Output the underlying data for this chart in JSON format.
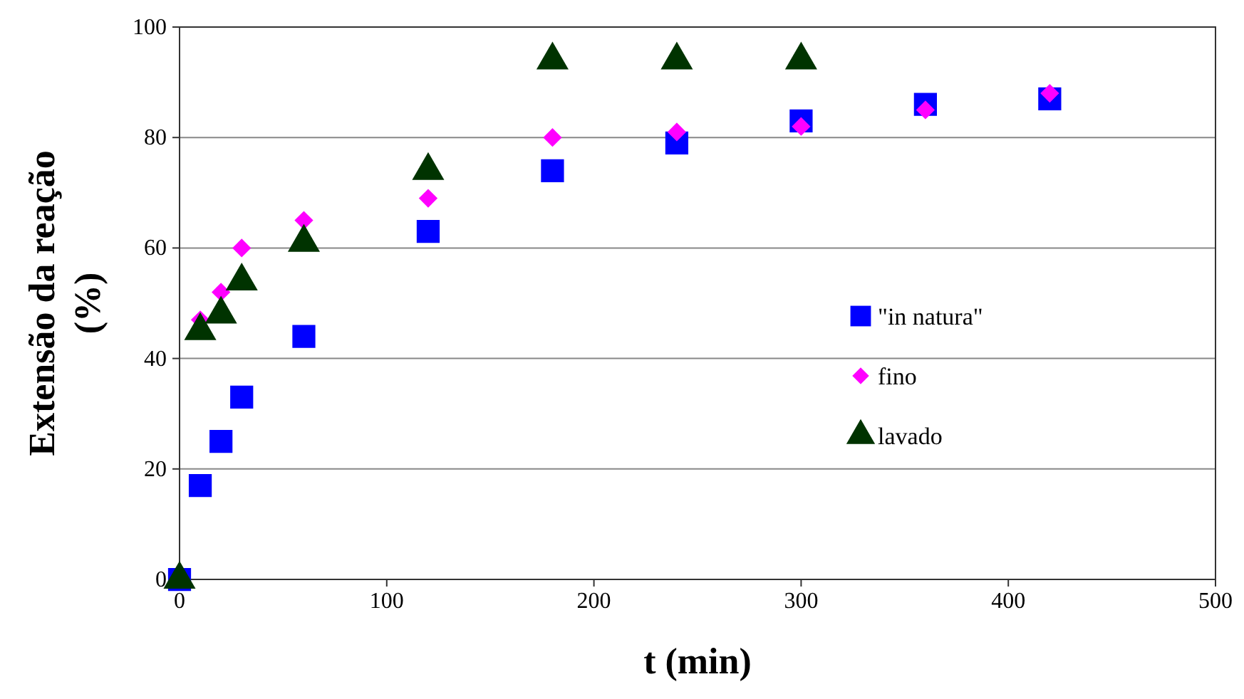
{
  "chart_data": {
    "type": "scatter",
    "xlabel": "t (min)",
    "ylabel": "Extensão da reação\n(%)",
    "xlim": [
      0,
      500
    ],
    "xticks": [
      0,
      100,
      200,
      300,
      400,
      500
    ],
    "ylim": [
      0,
      100
    ],
    "yticks": [
      0,
      20,
      40,
      60,
      80,
      100
    ],
    "grid": "y",
    "legend": "right",
    "series": [
      {
        "name": "\"in natura\"",
        "color": "#0000ff",
        "marker": "square",
        "x": [
          0,
          10,
          20,
          30,
          60,
          120,
          180,
          240,
          300,
          360,
          420
        ],
        "values": [
          0,
          17,
          25,
          33,
          44,
          63,
          74,
          79,
          83,
          86,
          87
        ]
      },
      {
        "name": "fino",
        "color": "#ff00ff",
        "marker": "diamond",
        "x": [
          10,
          20,
          30,
          60,
          120,
          180,
          240,
          300,
          360,
          420
        ],
        "values": [
          47,
          52,
          60,
          65,
          69,
          80,
          81,
          82,
          85,
          88
        ]
      },
      {
        "name": "lavado",
        "color": "#003300",
        "marker": "triangle",
        "x": [
          0,
          10,
          20,
          30,
          60,
          120,
          180,
          240,
          300
        ],
        "values": [
          0,
          45,
          48,
          54,
          61,
          74,
          94,
          94,
          94
        ]
      }
    ]
  }
}
